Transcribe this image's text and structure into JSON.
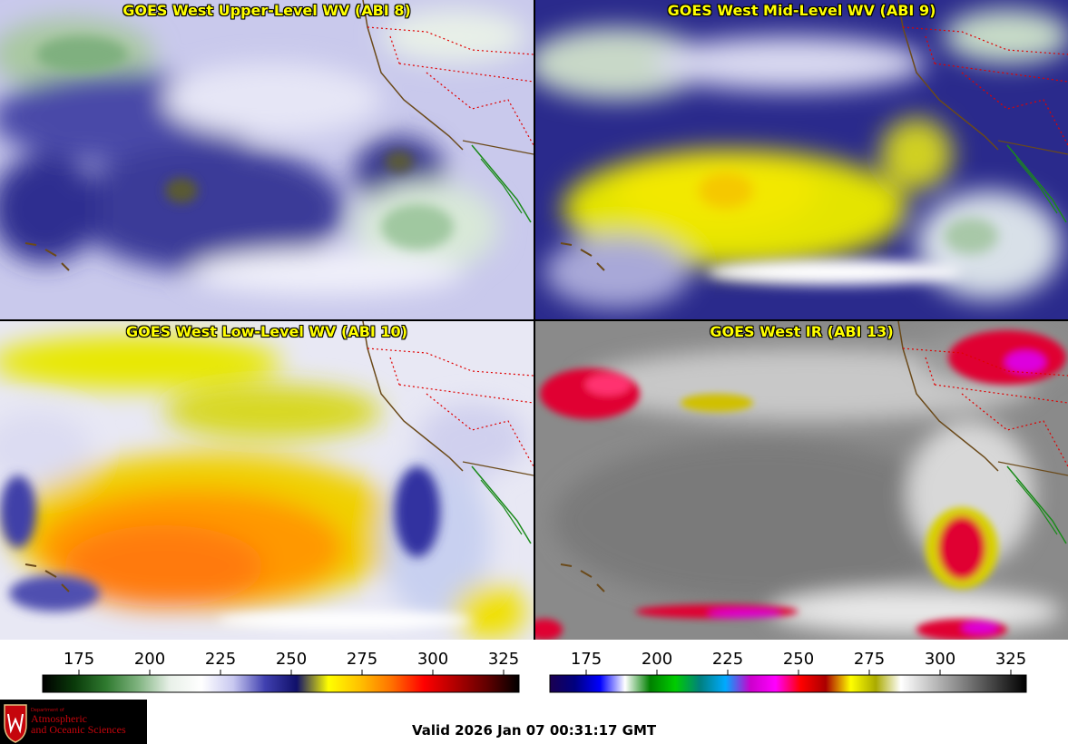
{
  "panels": [
    {
      "id": "upper",
      "title": "GOES West Upper-Level WV (ABI 8)"
    },
    {
      "id": "mid",
      "title": "GOES West Mid-Level WV (ABI 9)"
    },
    {
      "id": "low",
      "title": "GOES West Low-Level WV (ABI 10)"
    },
    {
      "id": "ir",
      "title": "GOES West IR (ABI 13)"
    }
  ],
  "colorbars": {
    "wv": {
      "ticks": [
        "175",
        "200",
        "225",
        "250",
        "275",
        "300",
        "325"
      ],
      "colors": [
        "#000000",
        "#0a3a0a",
        "#2f7a2f",
        "#7fb37f",
        "#e8f0e8",
        "#ffffff",
        "#c8c8f0",
        "#4040b0",
        "#10106a",
        "#ffff00",
        "#ffc000",
        "#ff7000",
        "#ff0000",
        "#b00000",
        "#600000",
        "#000000"
      ]
    },
    "ir": {
      "ticks": [
        "175",
        "200",
        "225",
        "250",
        "275",
        "300",
        "325"
      ],
      "colors": [
        "#1a0050",
        "#000080",
        "#0000ff",
        "#ffffff",
        "#008000",
        "#00cc00",
        "#008080",
        "#00aaff",
        "#cc00cc",
        "#ff00ff",
        "#ff0000",
        "#aa0000",
        "#ffff00",
        "#aaaa00",
        "#ffffff",
        "#cccccc",
        "#999999",
        "#666666",
        "#333333",
        "#000000"
      ]
    }
  },
  "logo": {
    "line1": "Department of",
    "line2": "Atmospheric",
    "line3": "and Oceanic Sciences"
  },
  "valid_time": "Valid 2026 Jan 07 00:31:17 GMT"
}
